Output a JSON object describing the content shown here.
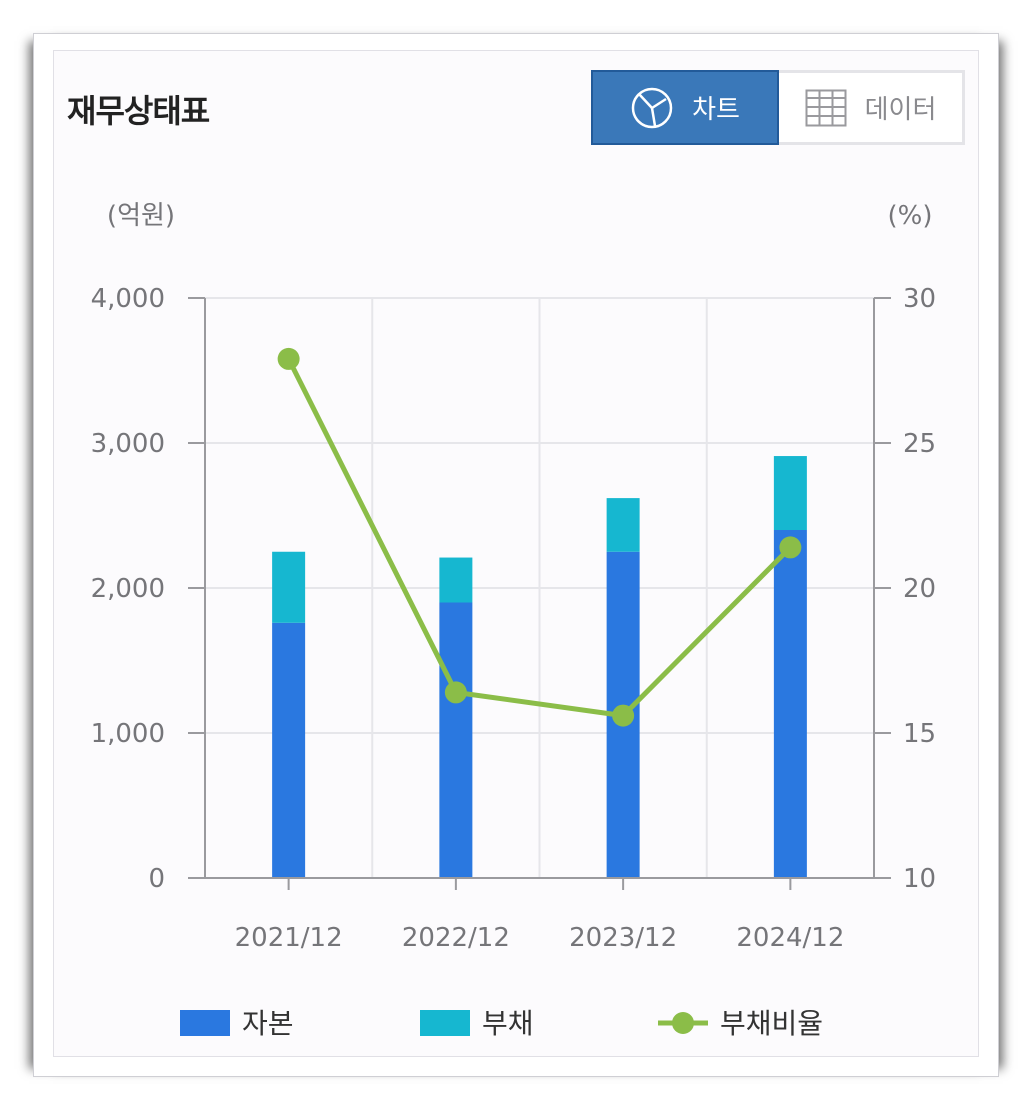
{
  "title": "재무상태표",
  "toggle": {
    "chart_label": "차트",
    "data_label": "데이터",
    "chart_icon": "pie-chart-icon",
    "data_icon": "table-grid-icon",
    "active": "chart"
  },
  "colors": {
    "equity": "#2a78e0",
    "liability": "#16b7d0",
    "ratio": "#8bbd48",
    "toggle_active": "#3a78b9"
  },
  "chart_data": {
    "type": "bar",
    "stacked": true,
    "categories": [
      "2021/12",
      "2022/12",
      "2023/12",
      "2024/12"
    ],
    "left_unit": "(억원)",
    "right_unit": "(%)",
    "ylim_left": [
      0,
      4000
    ],
    "yticks_left": [
      0,
      1000,
      2000,
      3000,
      4000
    ],
    "ytick_labels_left": [
      "0",
      "1,000",
      "2,000",
      "3,000",
      "4,000"
    ],
    "ylim_right": [
      10,
      30
    ],
    "yticks_right": [
      10,
      15,
      20,
      25,
      30
    ],
    "ytick_labels_right": [
      "10",
      "15",
      "20",
      "25",
      "30"
    ],
    "grid": true,
    "legend_position": "bottom",
    "series": [
      {
        "name": "자본",
        "kind": "bar",
        "axis": "left",
        "color": "#2a78e0",
        "values": [
          1760,
          1900,
          2250,
          2400
        ]
      },
      {
        "name": "부채",
        "kind": "bar",
        "axis": "left",
        "color": "#16b7d0",
        "values": [
          490,
          310,
          370,
          510
        ]
      },
      {
        "name": "부채비율",
        "kind": "line",
        "axis": "right",
        "color": "#8bbd48",
        "values": [
          27.9,
          16.4,
          15.6,
          21.4
        ]
      }
    ]
  }
}
